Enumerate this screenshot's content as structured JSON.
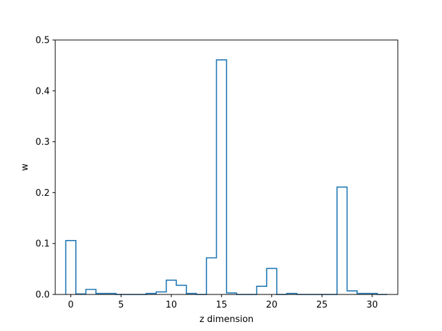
{
  "chart_data": {
    "type": "line",
    "style": "step-histogram",
    "title": "",
    "xlabel": "z dimension",
    "ylabel": "w",
    "xlim": [
      -1.55,
      32.55
    ],
    "ylim": [
      0,
      0.5
    ],
    "xticks": [
      0,
      5,
      10,
      15,
      20,
      25,
      30
    ],
    "yticks": [
      0.0,
      0.1,
      0.2,
      0.3,
      0.4,
      0.5
    ],
    "xtick_labels": [
      "0",
      "5",
      "10",
      "15",
      "20",
      "25",
      "30"
    ],
    "ytick_labels": [
      "0.0",
      "0.1",
      "0.2",
      "0.3",
      "0.4",
      "0.5"
    ],
    "grid": false,
    "legend": false,
    "line_color": "#1f77b4",
    "x": [
      0,
      1,
      2,
      3,
      4,
      5,
      6,
      7,
      8,
      9,
      10,
      11,
      12,
      13,
      14,
      15,
      16,
      17,
      18,
      19,
      20,
      21,
      22,
      23,
      24,
      25,
      26,
      27,
      28,
      29,
      30,
      31
    ],
    "values": [
      0.106,
      0.001,
      0.01,
      0.002,
      0.002,
      0.0,
      0.0,
      0.0,
      0.002,
      0.005,
      0.028,
      0.018,
      0.002,
      0.0,
      0.072,
      0.461,
      0.003,
      0.0,
      0.0,
      0.016,
      0.051,
      0.0,
      0.002,
      0.0,
      0.0,
      0.0,
      0.0,
      0.211,
      0.007,
      0.002,
      0.002,
      0.0
    ]
  }
}
